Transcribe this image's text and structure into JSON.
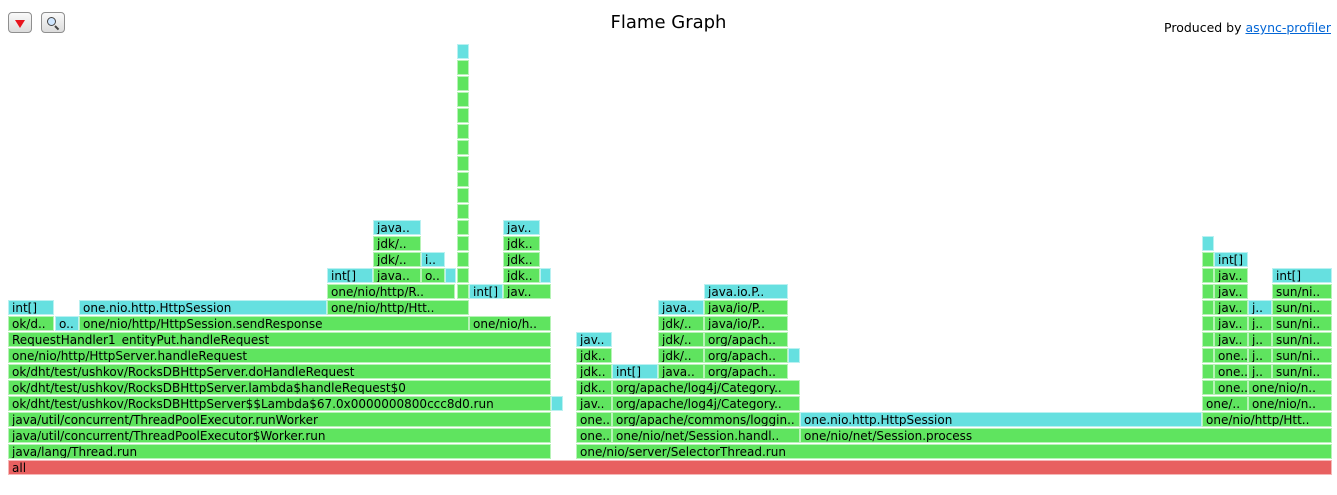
{
  "toolbar": {
    "reverse_icon": "triangle-down-icon",
    "search_icon": "magnifier-icon"
  },
  "title": "Flame Graph",
  "produced_by": {
    "text": "Produced by",
    "link": "async-profiler"
  },
  "colors": {
    "root": "#e86060",
    "green": "#5fe45f",
    "cyan": "#66e0e0"
  },
  "chart_data": {
    "type": "flamegraph",
    "total_width": 1337,
    "frames": [
      {
        "label": "all",
        "depth": 0,
        "start": 8,
        "width": 1324,
        "color": "root"
      },
      {
        "label": "java/lang/Thread.run",
        "depth": 1,
        "start": 8,
        "width": 543,
        "color": "green"
      },
      {
        "label": "java/util/concurrent/ThreadPoolExecutor$Worker.run",
        "depth": 2,
        "start": 8,
        "width": 543,
        "color": "green"
      },
      {
        "label": "java/util/concurrent/ThreadPoolExecutor.runWorker",
        "depth": 3,
        "start": 8,
        "width": 543,
        "color": "green"
      },
      {
        "label": "ok/dht/test/ushkov/RocksDBHttpServer$$Lambda$67.0x0000000800ccc8d0.run",
        "depth": 4,
        "start": 8,
        "width": 543,
        "color": "green"
      },
      {
        "label": "ok/dht/test/ushkov/RocksDBHttpServer.lambda$handleRequest$0",
        "depth": 5,
        "start": 8,
        "width": 543,
        "color": "green"
      },
      {
        "label": "ok/dht/test/ushkov/RocksDBHttpServer.doHandleRequest",
        "depth": 6,
        "start": 8,
        "width": 543,
        "color": "green"
      },
      {
        "label": "one/nio/http/HttpServer.handleRequest",
        "depth": 7,
        "start": 8,
        "width": 543,
        "color": "green"
      },
      {
        "label": "RequestHandler1_entityPut.handleRequest",
        "depth": 8,
        "start": 8,
        "width": 543,
        "color": "green"
      },
      {
        "label": "ok/d..",
        "depth": 9,
        "start": 8,
        "width": 46,
        "color": "green"
      },
      {
        "label": "o..",
        "depth": 9,
        "start": 55,
        "width": 24,
        "color": "cyan"
      },
      {
        "label": "one/nio/http/HttpSession.sendResponse",
        "depth": 9,
        "start": 79,
        "width": 390,
        "color": "green"
      },
      {
        "label": "one/nio/h..",
        "depth": 9,
        "start": 469,
        "width": 82,
        "color": "green"
      },
      {
        "label": "int[]",
        "depth": 10,
        "start": 8,
        "width": 46,
        "color": "cyan"
      },
      {
        "label": "one.nio.http.HttpSession",
        "depth": 10,
        "start": 79,
        "width": 248,
        "color": "cyan"
      },
      {
        "label": "one/nio/http/Htt..",
        "depth": 10,
        "start": 327,
        "width": 142,
        "color": "green"
      },
      {
        "label": "one/nio/http/R..",
        "depth": 11,
        "start": 327,
        "width": 128,
        "color": "green"
      },
      {
        "label": "int[]",
        "depth": 11,
        "start": 469,
        "width": 34,
        "color": "cyan"
      },
      {
        "label": "jav..",
        "depth": 11,
        "start": 503,
        "width": 48,
        "color": "green"
      },
      {
        "label": "int[]",
        "depth": 12,
        "start": 327,
        "width": 46,
        "color": "cyan"
      },
      {
        "label": "java..",
        "depth": 12,
        "start": 373,
        "width": 48,
        "color": "green"
      },
      {
        "label": "o..",
        "depth": 12,
        "start": 421,
        "width": 24,
        "color": "green"
      },
      {
        "label": "",
        "depth": 12,
        "start": 445,
        "width": 11,
        "color": "cyan"
      },
      {
        "label": "jdk..",
        "depth": 12,
        "start": 503,
        "width": 37,
        "color": "green"
      },
      {
        "label": "",
        "depth": 12,
        "start": 540,
        "width": 11,
        "color": "cyan"
      },
      {
        "label": "jdk/..",
        "depth": 13,
        "start": 373,
        "width": 48,
        "color": "green"
      },
      {
        "label": "i..",
        "depth": 13,
        "start": 421,
        "width": 24,
        "color": "cyan"
      },
      {
        "label": "jdk..",
        "depth": 13,
        "start": 503,
        "width": 37,
        "color": "green"
      },
      {
        "label": "jdk/..",
        "depth": 14,
        "start": 373,
        "width": 48,
        "color": "green"
      },
      {
        "label": "jdk..",
        "depth": 14,
        "start": 503,
        "width": 37,
        "color": "green"
      },
      {
        "label": "java..",
        "depth": 15,
        "start": 373,
        "width": 48,
        "color": "cyan"
      },
      {
        "label": "jav..",
        "depth": 15,
        "start": 503,
        "width": 37,
        "color": "cyan"
      },
      {
        "label": "",
        "depth": 11,
        "start": 457,
        "width": 12,
        "color": "green"
      },
      {
        "label": "",
        "depth": 12,
        "start": 457,
        "width": 12,
        "color": "green"
      },
      {
        "label": "",
        "depth": 13,
        "start": 457,
        "width": 12,
        "color": "green"
      },
      {
        "label": "",
        "depth": 14,
        "start": 457,
        "width": 12,
        "color": "green"
      },
      {
        "label": "",
        "depth": 15,
        "start": 457,
        "width": 12,
        "color": "green"
      },
      {
        "label": "",
        "depth": 16,
        "start": 457,
        "width": 12,
        "color": "green"
      },
      {
        "label": "",
        "depth": 17,
        "start": 457,
        "width": 12,
        "color": "green"
      },
      {
        "label": "",
        "depth": 18,
        "start": 457,
        "width": 12,
        "color": "green"
      },
      {
        "label": "",
        "depth": 19,
        "start": 457,
        "width": 12,
        "color": "green"
      },
      {
        "label": "",
        "depth": 20,
        "start": 457,
        "width": 12,
        "color": "green"
      },
      {
        "label": "",
        "depth": 21,
        "start": 457,
        "width": 12,
        "color": "green"
      },
      {
        "label": "",
        "depth": 22,
        "start": 457,
        "width": 12,
        "color": "green"
      },
      {
        "label": "",
        "depth": 23,
        "start": 457,
        "width": 12,
        "color": "green"
      },
      {
        "label": "",
        "depth": 24,
        "start": 457,
        "width": 12,
        "color": "green"
      },
      {
        "label": "",
        "depth": 25,
        "start": 457,
        "width": 12,
        "color": "green"
      },
      {
        "label": "",
        "depth": 26,
        "start": 457,
        "width": 12,
        "color": "cyan"
      },
      {
        "label": "",
        "depth": 4,
        "start": 551,
        "width": 12,
        "color": "cyan"
      },
      {
        "label": "one/nio/server/SelectorThread.run",
        "depth": 1,
        "start": 576,
        "width": 756,
        "color": "green"
      },
      {
        "label": "one..",
        "depth": 2,
        "start": 576,
        "width": 36,
        "color": "green"
      },
      {
        "label": "one/nio/net/Session.handl..",
        "depth": 2,
        "start": 612,
        "width": 188,
        "color": "green"
      },
      {
        "label": "one/nio/net/Session.process",
        "depth": 2,
        "start": 800,
        "width": 532,
        "color": "green"
      },
      {
        "label": "one..",
        "depth": 3,
        "start": 576,
        "width": 36,
        "color": "green"
      },
      {
        "label": "org/apache/commons/loggin..",
        "depth": 3,
        "start": 612,
        "width": 188,
        "color": "green"
      },
      {
        "label": "one.nio.http.HttpSession",
        "depth": 3,
        "start": 800,
        "width": 402,
        "color": "cyan"
      },
      {
        "label": "one/nio/http/Htt..",
        "depth": 3,
        "start": 1202,
        "width": 130,
        "color": "green"
      },
      {
        "label": "jav..",
        "depth": 4,
        "start": 576,
        "width": 36,
        "color": "green"
      },
      {
        "label": "org/apache/log4j/Category..",
        "depth": 4,
        "start": 612,
        "width": 188,
        "color": "green"
      },
      {
        "label": "one/..",
        "depth": 4,
        "start": 1202,
        "width": 46,
        "color": "green"
      },
      {
        "label": "one/nio/n..",
        "depth": 4,
        "start": 1248,
        "width": 84,
        "color": "green"
      },
      {
        "label": "jdk..",
        "depth": 5,
        "start": 576,
        "width": 36,
        "color": "green"
      },
      {
        "label": "org/apache/log4j/Category..",
        "depth": 5,
        "start": 612,
        "width": 188,
        "color": "green"
      },
      {
        "label": "one..",
        "depth": 5,
        "start": 1214,
        "width": 34,
        "color": "green"
      },
      {
        "label": "one/nio/n..",
        "depth": 5,
        "start": 1248,
        "width": 84,
        "color": "green"
      },
      {
        "label": "",
        "depth": 5,
        "start": 1202,
        "width": 12,
        "color": "green"
      },
      {
        "label": "jdk..",
        "depth": 6,
        "start": 576,
        "width": 36,
        "color": "green"
      },
      {
        "label": "int[]",
        "depth": 6,
        "start": 612,
        "width": 46,
        "color": "cyan"
      },
      {
        "label": "java..",
        "depth": 6,
        "start": 658,
        "width": 46,
        "color": "green"
      },
      {
        "label": "org/apach..",
        "depth": 6,
        "start": 704,
        "width": 84,
        "color": "green"
      },
      {
        "label": "",
        "depth": 6,
        "start": 1202,
        "width": 12,
        "color": "green"
      },
      {
        "label": "one..",
        "depth": 6,
        "start": 1214,
        "width": 34,
        "color": "green"
      },
      {
        "label": "j..",
        "depth": 6,
        "start": 1248,
        "width": 24,
        "color": "green"
      },
      {
        "label": "sun/ni..",
        "depth": 6,
        "start": 1272,
        "width": 60,
        "color": "green"
      },
      {
        "label": "jdk..",
        "depth": 7,
        "start": 576,
        "width": 36,
        "color": "green"
      },
      {
        "label": "jdk/..",
        "depth": 7,
        "start": 658,
        "width": 46,
        "color": "green"
      },
      {
        "label": "org/apach..",
        "depth": 7,
        "start": 704,
        "width": 84,
        "color": "green"
      },
      {
        "label": "",
        "depth": 7,
        "start": 788,
        "width": 12,
        "color": "cyan"
      },
      {
        "label": "",
        "depth": 7,
        "start": 1202,
        "width": 12,
        "color": "green"
      },
      {
        "label": "one..",
        "depth": 7,
        "start": 1214,
        "width": 34,
        "color": "green"
      },
      {
        "label": "j..",
        "depth": 7,
        "start": 1248,
        "width": 24,
        "color": "green"
      },
      {
        "label": "sun/ni..",
        "depth": 7,
        "start": 1272,
        "width": 60,
        "color": "green"
      },
      {
        "label": "jav..",
        "depth": 8,
        "start": 576,
        "width": 36,
        "color": "cyan"
      },
      {
        "label": "jdk/..",
        "depth": 8,
        "start": 658,
        "width": 46,
        "color": "green"
      },
      {
        "label": "org/apach..",
        "depth": 8,
        "start": 704,
        "width": 84,
        "color": "green"
      },
      {
        "label": "jav..",
        "depth": 8,
        "start": 1214,
        "width": 34,
        "color": "green"
      },
      {
        "label": "j..",
        "depth": 8,
        "start": 1248,
        "width": 24,
        "color": "green"
      },
      {
        "label": "sun/ni..",
        "depth": 8,
        "start": 1272,
        "width": 60,
        "color": "green"
      },
      {
        "label": "",
        "depth": 8,
        "start": 1202,
        "width": 12,
        "color": "green"
      },
      {
        "label": "jdk/..",
        "depth": 9,
        "start": 658,
        "width": 46,
        "color": "green"
      },
      {
        "label": "java/io/P..",
        "depth": 9,
        "start": 704,
        "width": 84,
        "color": "green"
      },
      {
        "label": "",
        "depth": 9,
        "start": 1202,
        "width": 12,
        "color": "green"
      },
      {
        "label": "jav..",
        "depth": 9,
        "start": 1214,
        "width": 34,
        "color": "green"
      },
      {
        "label": "j..",
        "depth": 9,
        "start": 1248,
        "width": 24,
        "color": "green"
      },
      {
        "label": "sun/ni..",
        "depth": 9,
        "start": 1272,
        "width": 60,
        "color": "green"
      },
      {
        "label": "java..",
        "depth": 10,
        "start": 658,
        "width": 46,
        "color": "cyan"
      },
      {
        "label": "java/io/P..",
        "depth": 10,
        "start": 704,
        "width": 84,
        "color": "green"
      },
      {
        "label": "",
        "depth": 10,
        "start": 1202,
        "width": 12,
        "color": "green"
      },
      {
        "label": "jav..",
        "depth": 10,
        "start": 1214,
        "width": 34,
        "color": "green"
      },
      {
        "label": "j..",
        "depth": 10,
        "start": 1248,
        "width": 24,
        "color": "cyan"
      },
      {
        "label": "sun/ni..",
        "depth": 10,
        "start": 1272,
        "width": 60,
        "color": "green"
      },
      {
        "label": "java.io.P..",
        "depth": 11,
        "start": 704,
        "width": 84,
        "color": "cyan"
      },
      {
        "label": "",
        "depth": 11,
        "start": 1202,
        "width": 12,
        "color": "green"
      },
      {
        "label": "jav..",
        "depth": 11,
        "start": 1214,
        "width": 34,
        "color": "green"
      },
      {
        "label": "sun/ni..",
        "depth": 11,
        "start": 1272,
        "width": 60,
        "color": "green"
      },
      {
        "label": "",
        "depth": 12,
        "start": 1202,
        "width": 12,
        "color": "green"
      },
      {
        "label": "jav..",
        "depth": 12,
        "start": 1214,
        "width": 34,
        "color": "green"
      },
      {
        "label": "int[]",
        "depth": 12,
        "start": 1272,
        "width": 60,
        "color": "cyan"
      },
      {
        "label": "",
        "depth": 13,
        "start": 1202,
        "width": 12,
        "color": "green"
      },
      {
        "label": "int[]",
        "depth": 13,
        "start": 1214,
        "width": 34,
        "color": "cyan"
      },
      {
        "label": "",
        "depth": 14,
        "start": 1202,
        "width": 12,
        "color": "cyan"
      }
    ]
  }
}
